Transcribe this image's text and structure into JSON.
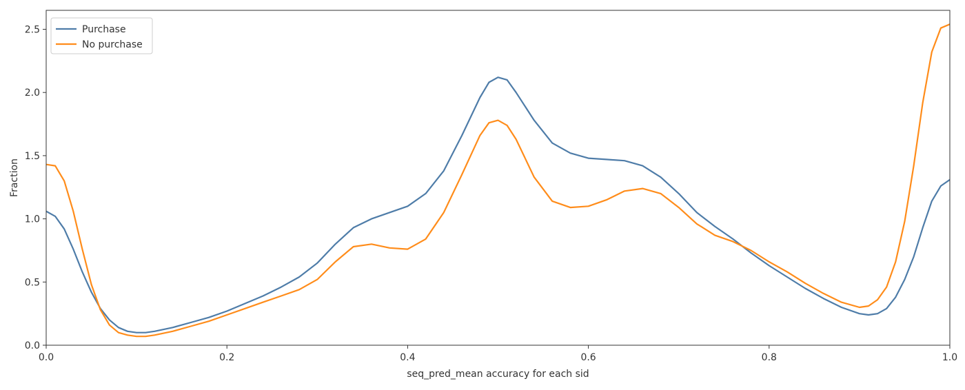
{
  "chart_data": {
    "type": "line",
    "title": "",
    "xlabel": "seq_pred_mean accuracy for each sid",
    "ylabel": "Fraction",
    "xlim": [
      0.0,
      1.0
    ],
    "ylim": [
      0.0,
      2.65
    ],
    "xticks": [
      0.0,
      0.2,
      0.4,
      0.6,
      0.8,
      1.0
    ],
    "xtick_labels": [
      "0.0",
      "0.2",
      "0.4",
      "0.6",
      "0.8",
      "1.0"
    ],
    "yticks": [
      0.0,
      0.5,
      1.0,
      1.5,
      2.0,
      2.5
    ],
    "ytick_labels": [
      "0.0",
      "0.5",
      "1.0",
      "1.5",
      "2.0",
      "2.5"
    ],
    "grid": false,
    "legend_position": "top-left",
    "series": [
      {
        "name": "Purchase",
        "color": "#4e7ca8",
        "x": [
          0.0,
          0.01,
          0.02,
          0.03,
          0.04,
          0.05,
          0.06,
          0.07,
          0.08,
          0.09,
          0.1,
          0.11,
          0.12,
          0.14,
          0.16,
          0.18,
          0.2,
          0.22,
          0.24,
          0.26,
          0.28,
          0.3,
          0.32,
          0.34,
          0.36,
          0.38,
          0.4,
          0.42,
          0.44,
          0.46,
          0.48,
          0.49,
          0.5,
          0.51,
          0.52,
          0.54,
          0.56,
          0.58,
          0.6,
          0.62,
          0.64,
          0.66,
          0.68,
          0.7,
          0.72,
          0.74,
          0.76,
          0.78,
          0.8,
          0.82,
          0.84,
          0.86,
          0.88,
          0.9,
          0.91,
          0.92,
          0.93,
          0.94,
          0.95,
          0.96,
          0.97,
          0.98,
          0.99,
          1.0
        ],
        "y": [
          1.06,
          1.02,
          0.92,
          0.76,
          0.58,
          0.42,
          0.29,
          0.2,
          0.14,
          0.11,
          0.1,
          0.1,
          0.11,
          0.14,
          0.18,
          0.22,
          0.27,
          0.33,
          0.39,
          0.46,
          0.54,
          0.65,
          0.8,
          0.93,
          1.0,
          1.05,
          1.1,
          1.2,
          1.38,
          1.66,
          1.96,
          2.08,
          2.12,
          2.1,
          2.0,
          1.78,
          1.6,
          1.52,
          1.48,
          1.47,
          1.46,
          1.42,
          1.33,
          1.2,
          1.05,
          0.94,
          0.84,
          0.73,
          0.63,
          0.54,
          0.45,
          0.37,
          0.3,
          0.25,
          0.24,
          0.25,
          0.29,
          0.38,
          0.52,
          0.7,
          0.93,
          1.14,
          1.26,
          1.31
        ]
      },
      {
        "name": "No purchase",
        "color": "#ff8c1a",
        "x": [
          0.0,
          0.01,
          0.02,
          0.03,
          0.04,
          0.05,
          0.06,
          0.07,
          0.08,
          0.09,
          0.1,
          0.11,
          0.12,
          0.14,
          0.16,
          0.18,
          0.2,
          0.22,
          0.24,
          0.26,
          0.28,
          0.3,
          0.32,
          0.34,
          0.36,
          0.38,
          0.4,
          0.42,
          0.44,
          0.46,
          0.48,
          0.49,
          0.5,
          0.51,
          0.52,
          0.54,
          0.56,
          0.58,
          0.6,
          0.62,
          0.64,
          0.66,
          0.68,
          0.7,
          0.72,
          0.74,
          0.76,
          0.78,
          0.8,
          0.82,
          0.84,
          0.86,
          0.88,
          0.9,
          0.91,
          0.92,
          0.93,
          0.94,
          0.95,
          0.96,
          0.97,
          0.98,
          0.99,
          1.0
        ],
        "y": [
          1.43,
          1.42,
          1.3,
          1.06,
          0.76,
          0.48,
          0.28,
          0.16,
          0.1,
          0.08,
          0.07,
          0.07,
          0.08,
          0.11,
          0.15,
          0.19,
          0.24,
          0.29,
          0.34,
          0.39,
          0.44,
          0.52,
          0.66,
          0.78,
          0.8,
          0.77,
          0.76,
          0.84,
          1.05,
          1.35,
          1.66,
          1.76,
          1.78,
          1.74,
          1.63,
          1.33,
          1.14,
          1.09,
          1.1,
          1.15,
          1.22,
          1.24,
          1.2,
          1.09,
          0.96,
          0.87,
          0.82,
          0.75,
          0.66,
          0.58,
          0.49,
          0.41,
          0.34,
          0.3,
          0.31,
          0.36,
          0.46,
          0.66,
          0.98,
          1.42,
          1.92,
          2.32,
          2.51,
          2.54
        ]
      }
    ]
  }
}
